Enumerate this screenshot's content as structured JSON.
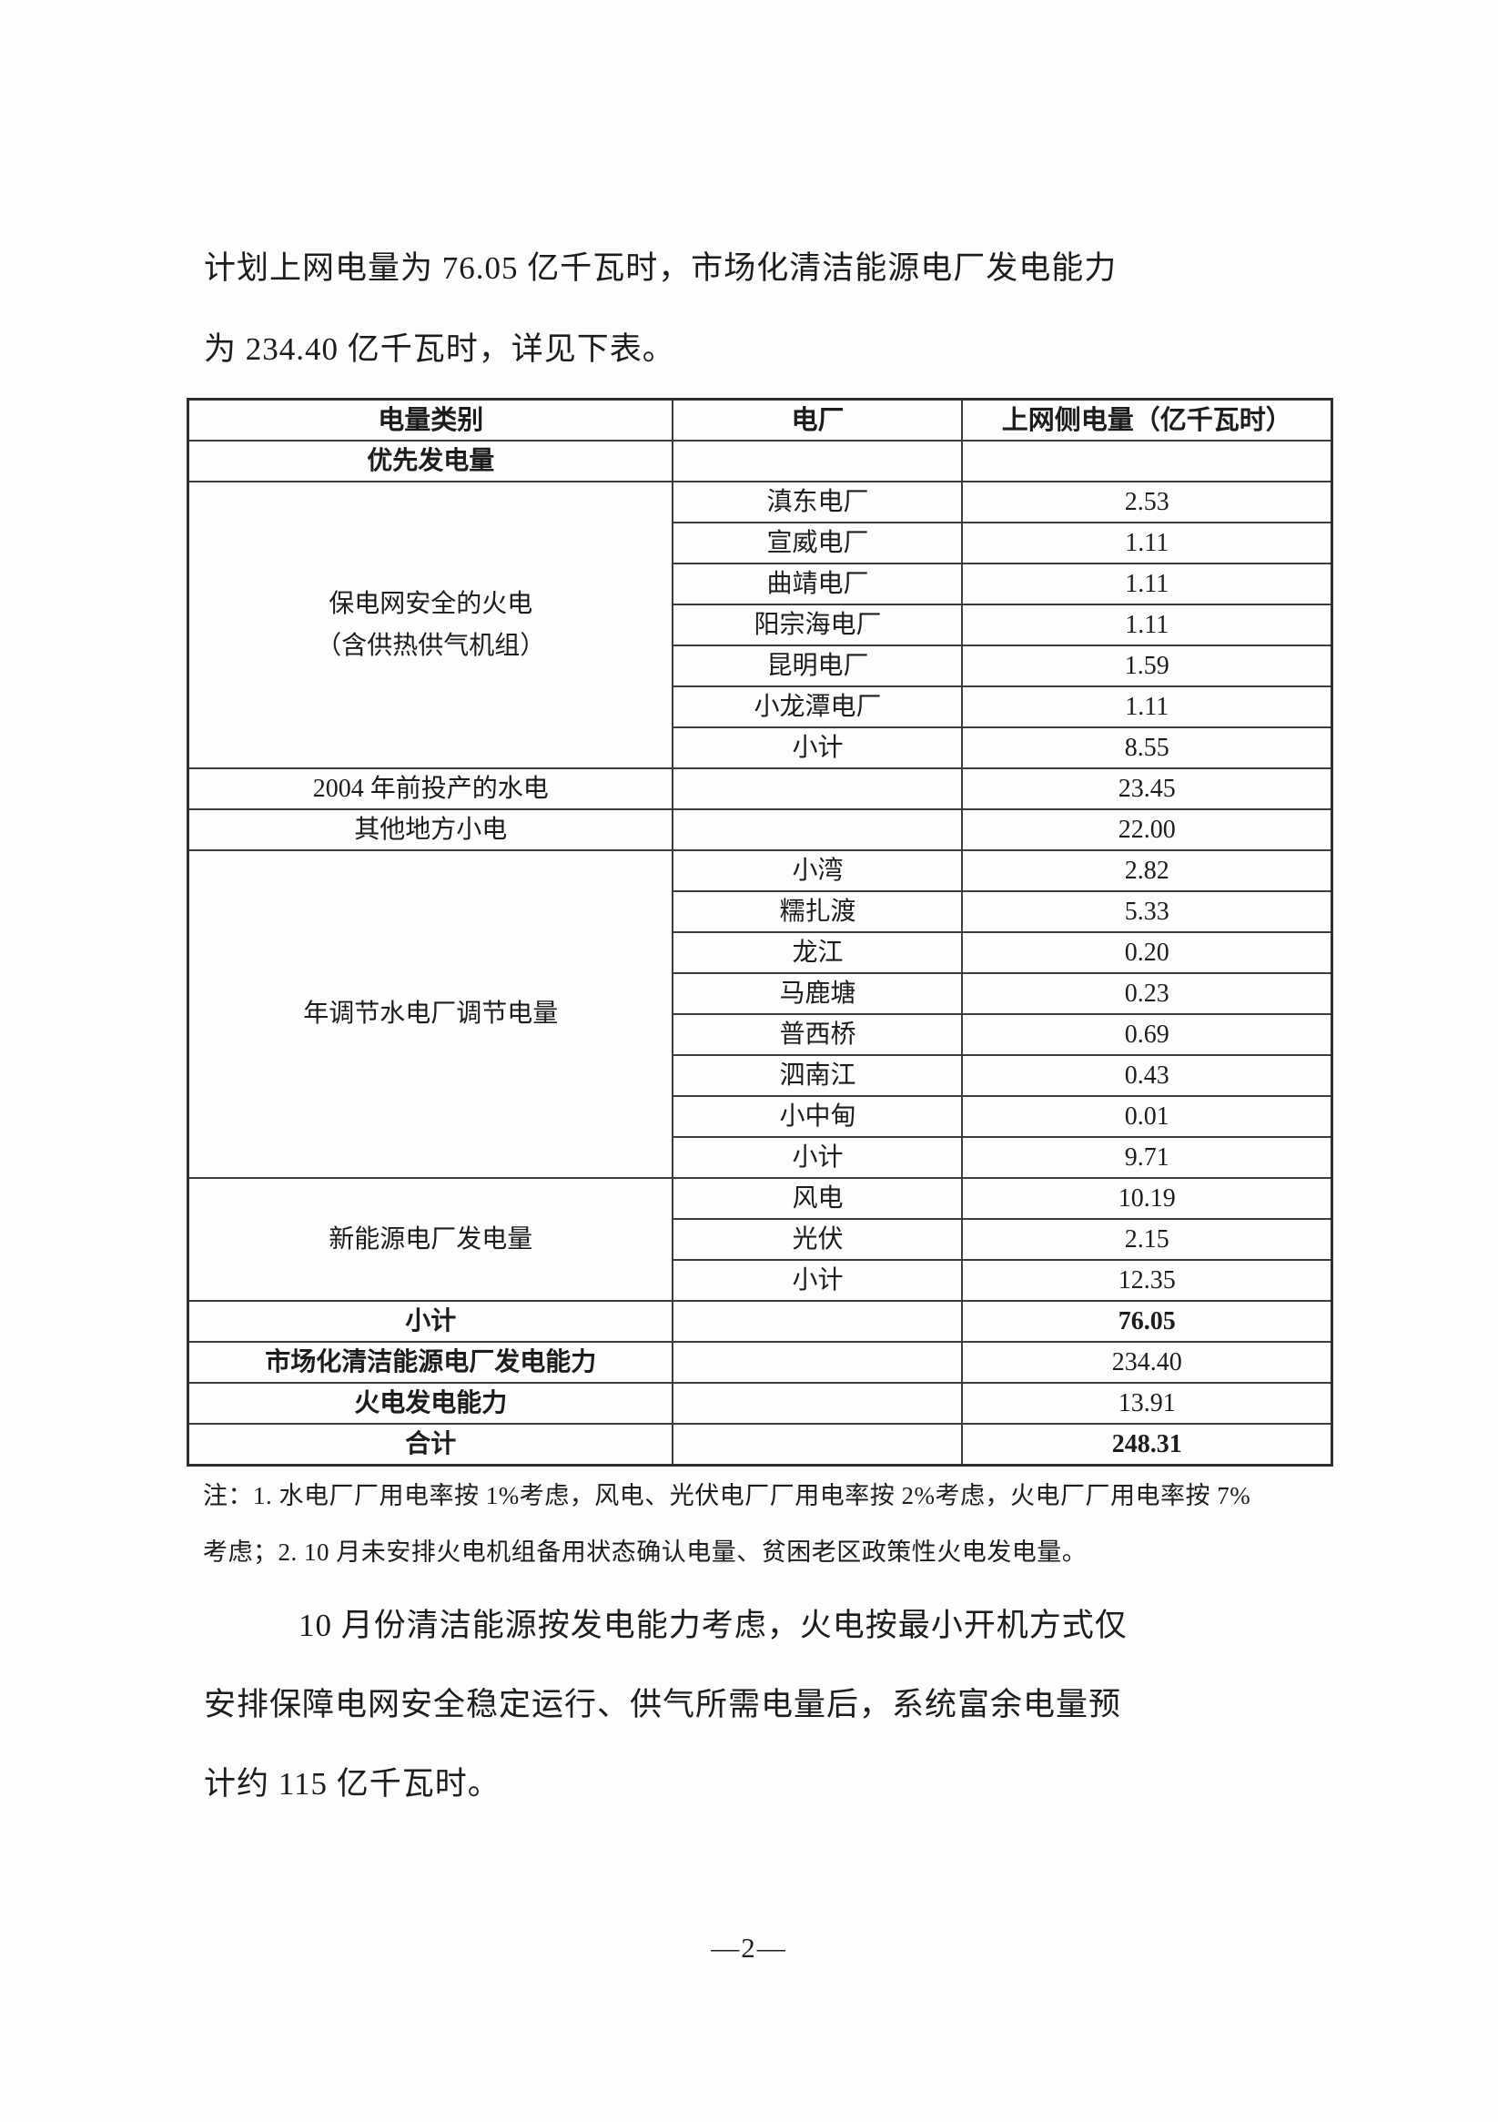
{
  "intro": {
    "line1": "计划上网电量为 76.05 亿千瓦时，市场化清洁能源电厂发电能力",
    "line2": "为 234.40 亿千瓦时，详见下表。"
  },
  "table": {
    "headers": [
      "电量类别",
      "电厂",
      "上网侧电量（亿千瓦时）"
    ],
    "priority_label": "优先发电量",
    "thermal_safe": {
      "label_line1": "保电网安全的火电",
      "label_line2": "（含供热供气机组）",
      "rows": [
        {
          "plant": "滇东电厂",
          "value": "2.53"
        },
        {
          "plant": "宣威电厂",
          "value": "1.11"
        },
        {
          "plant": "曲靖电厂",
          "value": "1.11"
        },
        {
          "plant": "阳宗海电厂",
          "value": "1.11"
        },
        {
          "plant": "昆明电厂",
          "value": "1.59"
        },
        {
          "plant": "小龙潭电厂",
          "value": "1.11"
        },
        {
          "plant": "小计",
          "value": "8.55"
        }
      ]
    },
    "hydro_pre2004": {
      "label": "2004 年前投产的水电",
      "value": "23.45"
    },
    "other_local": {
      "label": "其他地方小电",
      "value": "22.00"
    },
    "annual_hydro": {
      "label": "年调节水电厂调节电量",
      "rows": [
        {
          "plant": "小湾",
          "value": "2.82"
        },
        {
          "plant": "糯扎渡",
          "value": "5.33"
        },
        {
          "plant": "龙江",
          "value": "0.20"
        },
        {
          "plant": "马鹿塘",
          "value": "0.23"
        },
        {
          "plant": "普西桥",
          "value": "0.69"
        },
        {
          "plant": "泗南江",
          "value": "0.43"
        },
        {
          "plant": "小中甸",
          "value": "0.01"
        },
        {
          "plant": "小计",
          "value": "9.71"
        }
      ]
    },
    "new_energy": {
      "label": "新能源电厂发电量",
      "rows": [
        {
          "plant": "风电",
          "value": "10.19"
        },
        {
          "plant": "光伏",
          "value": "2.15"
        },
        {
          "plant": "小计",
          "value": "12.35"
        }
      ]
    },
    "subtotal": {
      "label": "小计",
      "value": "76.05"
    },
    "market_clean": {
      "label": "市场化清洁能源电厂发电能力",
      "value": "234.40"
    },
    "thermal_capacity": {
      "label": "火电发电能力",
      "value": "13.91"
    },
    "total": {
      "label": "合计",
      "value": "248.31"
    }
  },
  "notes": {
    "line1": "注：1. 水电厂厂用电率按 1%考虑，风电、光伏电厂厂用电率按 2%考虑，火电厂厂用电率按 7%",
    "line2": "考虑；2. 10 月未安排火电机组备用状态确认电量、贫困老区政策性火电发电量。"
  },
  "closing": {
    "line1": "10 月份清洁能源按发电能力考虑，火电按最小开机方式仅",
    "line2": "安排保障电网安全稳定运行、供气所需电量后，系统富余电量预",
    "line3": "计约 115 亿千瓦时。"
  },
  "footer": {
    "page_number": "—2—"
  }
}
